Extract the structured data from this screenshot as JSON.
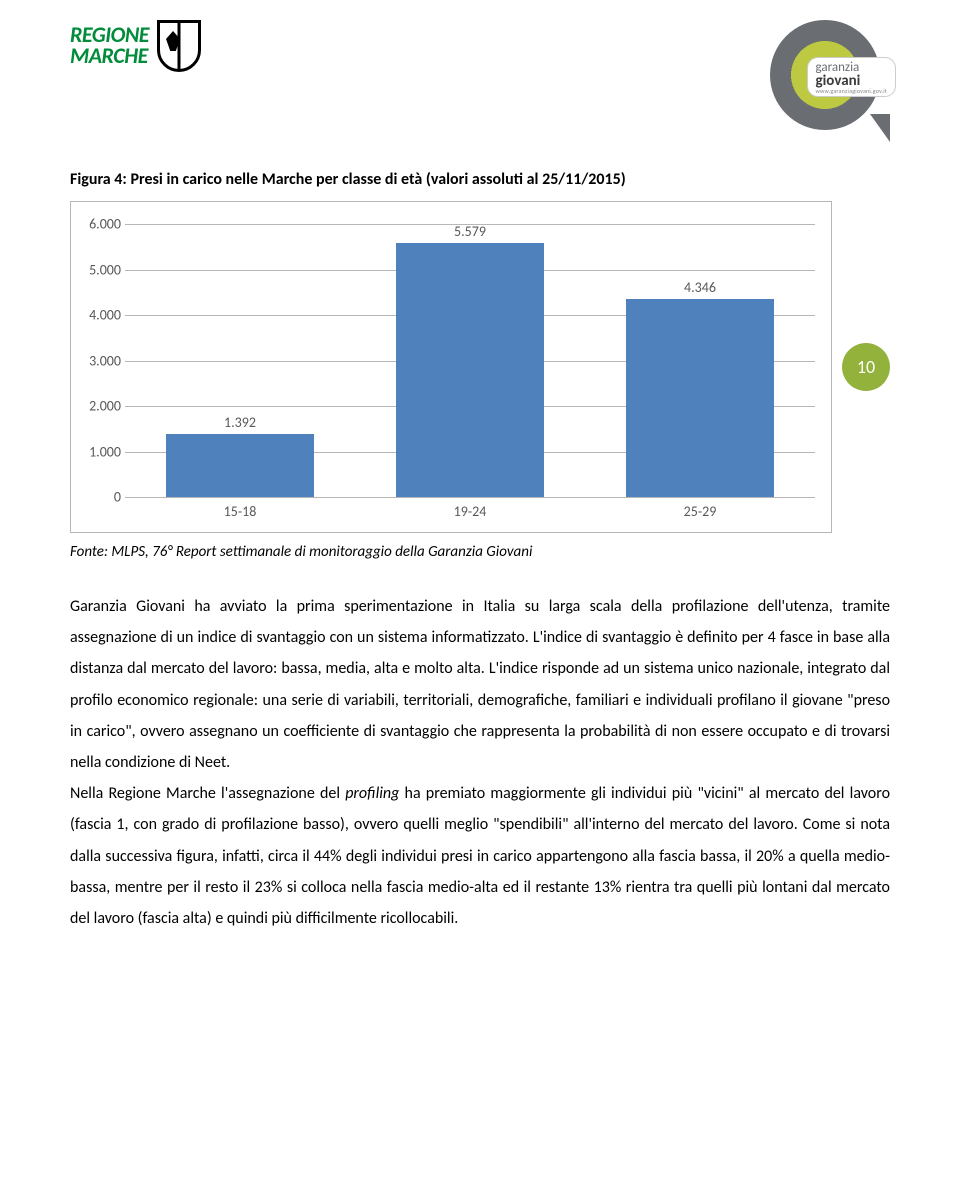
{
  "logo_marche": {
    "line1": "REGIONE",
    "line2": "MARCHE"
  },
  "logo_gg": {
    "line1": "garanzia",
    "line2": "giovani",
    "line3": "www.garanziagiovani.gov.it"
  },
  "page_number": "10",
  "figure_title": "Figura 4: Presi in carico nelle Marche per classe di età (valori assoluti al 25/11/2015)",
  "chart": {
    "type": "bar",
    "categories": [
      "15-18",
      "19-24",
      "25-29"
    ],
    "values": [
      1392,
      5579,
      4346
    ],
    "value_labels": [
      "1.392",
      "5.579",
      "4.346"
    ],
    "ymax": 6000,
    "ytick_step": 1000,
    "ytick_labels": [
      "0",
      "1.000",
      "2.000",
      "3.000",
      "4.000",
      "5.000",
      "6.000"
    ],
    "bar_color": "#4f81bd",
    "grid_color": "#b7b7b7",
    "label_color": "#585858",
    "label_fontsize": 14
  },
  "source": "Fonte: MLPS, 76° Report settimanale di monitoraggio della Garanzia Giovani",
  "para1": "Garanzia Giovani ha avviato la prima sperimentazione in Italia su larga scala della profilazione dell'utenza, tramite assegnazione di un indice di svantaggio con un sistema informatizzato. L'indice di svantaggio è definito per 4 fasce in base alla distanza dal mercato del lavoro: bassa, media, alta e molto alta. L'indice risponde ad un sistema unico nazionale, integrato dal profilo economico regionale: una serie di variabili, territoriali, demografiche, familiari e individuali profilano il giovane \"preso in carico\", ovvero assegnano un coefficiente di svantaggio che rappresenta la probabilità di non essere occupato e di trovarsi nella condizione di Neet.",
  "para2_a": "Nella Regione Marche l'assegnazione del ",
  "para2_em": "profiling",
  "para2_b": " ha premiato maggiormente gli individui più \"vicini\" al mercato del lavoro (fascia 1, con grado di profilazione basso), ovvero quelli meglio \"spendibili\" all'interno del mercato del lavoro. Come si nota dalla successiva figura, infatti, circa il 44% degli individui presi in carico appartengono alla fascia bassa, il 20% a quella medio-bassa, mentre per il resto il 23% si colloca nella fascia medio-alta ed il restante 13% rientra tra quelli più lontani dal mercato del lavoro (fascia alta) e quindi più difficilmente ricollocabili."
}
